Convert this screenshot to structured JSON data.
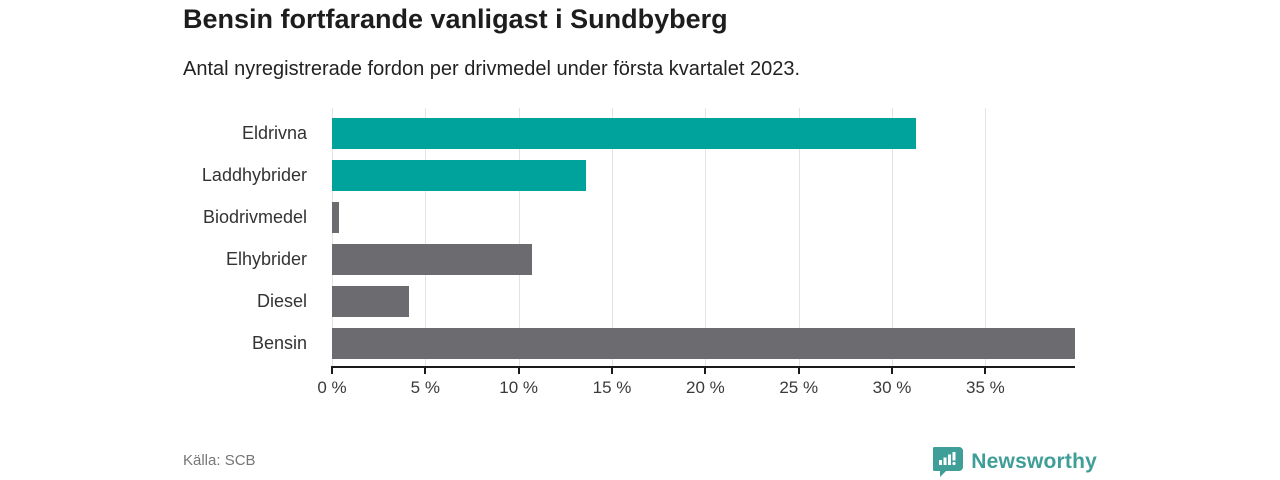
{
  "header": {
    "title": "Bensin fortfarande vanligast i Sundbyberg",
    "subtitle": "Antal nyregistrerade fordon per drivmedel under första kvartalet 2023."
  },
  "chart_data": {
    "type": "bar",
    "orientation": "horizontal",
    "title": "Bensin fortfarande vanligast i Sundbyberg",
    "subtitle": "Antal nyregistrerade fordon per drivmedel under första kvartalet 2023.",
    "categories": [
      "Eldrivna",
      "Laddhybrider",
      "Biodrivmedel",
      "Elhybrider",
      "Diesel",
      "Bensin"
    ],
    "values": [
      31.3,
      13.6,
      0.4,
      10.7,
      4.1,
      39.8
    ],
    "unit": "%",
    "bar_colors": [
      "#00a39b",
      "#00a39b",
      "#6b6b70",
      "#6b6b70",
      "#6b6b70",
      "#6b6b70"
    ],
    "xlim": [
      0,
      39.8
    ],
    "xticks": [
      0,
      5,
      10,
      15,
      20,
      25,
      30,
      35
    ],
    "xtick_labels": [
      "0 %",
      "5 %",
      "10 %",
      "15 %",
      "20 %",
      "25 %",
      "30 %",
      "35 %"
    ],
    "grid": true,
    "legend": "none"
  },
  "footer": {
    "source": "Källa: SCB",
    "brand": "Newsworthy"
  },
  "colors": {
    "accent_teal": "#00a39b",
    "bar_gray": "#6b6b70",
    "logo_teal": "#3f9e98",
    "gridline": "#e3e3e3",
    "axis": "#1a1a1a"
  }
}
